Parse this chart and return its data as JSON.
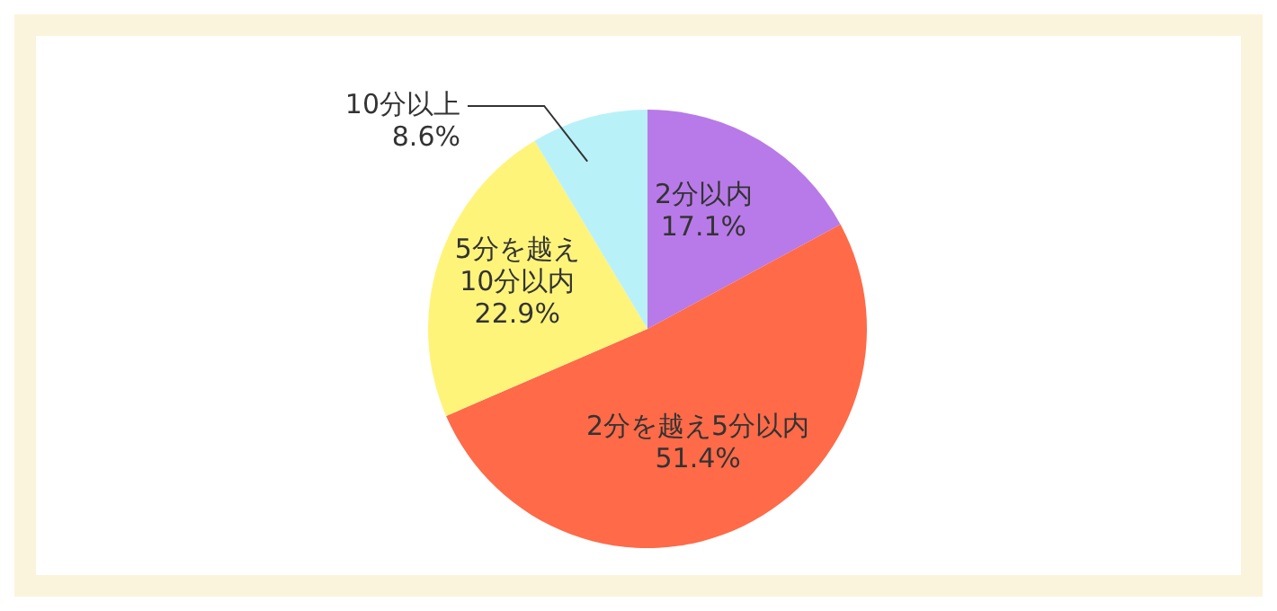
{
  "chart_data": {
    "type": "pie",
    "categories": [
      "2分以内",
      "2分を越え5分以内",
      "5分を越え10分以内",
      "10分以上"
    ],
    "values": [
      17.1,
      51.4,
      22.9,
      8.6
    ],
    "colors": [
      "#b87ae8",
      "#ff6a48",
      "#fff47a",
      "#b9f1f9"
    ],
    "value_labels": [
      "17.1%",
      "51.4%",
      "22.9%",
      "8.6%"
    ],
    "legend": false
  }
}
